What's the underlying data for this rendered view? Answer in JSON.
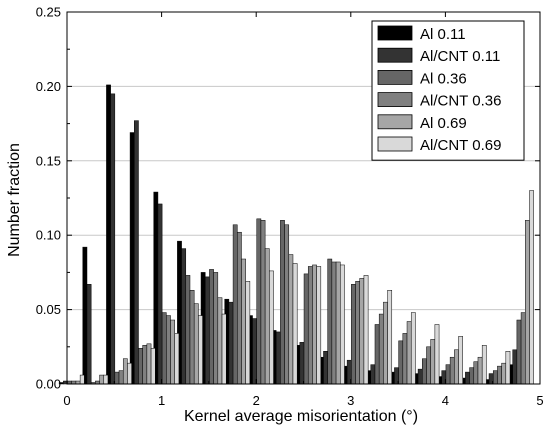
{
  "chart_data": {
    "type": "bar",
    "title": "",
    "xlabel": "Kernel average misorientation (°)",
    "ylabel": "Number fraction",
    "xlim": [
      0,
      5
    ],
    "ylim": [
      0,
      0.25
    ],
    "xticks": [
      "0",
      "1",
      "2",
      "3",
      "4",
      "5"
    ],
    "yticks": [
      "0.00",
      "0.05",
      "0.10",
      "0.15",
      "0.20",
      "0.25"
    ],
    "grid": true,
    "legend_position": "top-right",
    "bin_centers": [
      0.05,
      0.3,
      0.55,
      0.8,
      1.05,
      1.3,
      1.55,
      1.8,
      2.05,
      2.3,
      2.55,
      2.8,
      3.05,
      3.3,
      3.55,
      3.8,
      4.05,
      4.3,
      4.55,
      4.8
    ],
    "series": [
      {
        "name": "Al 0.11",
        "color": "#000000",
        "values": [
          0.001,
          0.092,
          0.201,
          0.169,
          0.129,
          0.096,
          0.075,
          0.057,
          0.046,
          0.036,
          0.026,
          0.018,
          0.012,
          0.009,
          0.008,
          0.007,
          0.005,
          0.004,
          0.003,
          0.013
        ]
      },
      {
        "name": "Al/CNT 0.11",
        "color": "#333333",
        "values": [
          0.002,
          0.067,
          0.195,
          0.177,
          0.121,
          0.091,
          0.072,
          0.055,
          0.044,
          0.035,
          0.028,
          0.022,
          0.016,
          0.013,
          0.011,
          0.01,
          0.009,
          0.008,
          0.007,
          0.023
        ]
      },
      {
        "name": "Al 0.36",
        "color": "#666666",
        "values": [
          0.002,
          0.001,
          0.008,
          0.024,
          0.048,
          0.073,
          0.077,
          0.107,
          0.111,
          0.11,
          0.074,
          0.084,
          0.067,
          0.04,
          0.029,
          0.017,
          0.013,
          0.011,
          0.009,
          0.043
        ]
      },
      {
        "name": "Al/CNT 0.36",
        "color": "#808080",
        "values": [
          0.002,
          0.002,
          0.009,
          0.026,
          0.046,
          0.063,
          0.075,
          0.102,
          0.11,
          0.107,
          0.079,
          0.082,
          0.069,
          0.047,
          0.034,
          0.025,
          0.018,
          0.015,
          0.012,
          0.048
        ]
      },
      {
        "name": "Al 0.69",
        "color": "#a6a6a6",
        "values": [
          0.002,
          0.006,
          0.017,
          0.027,
          0.043,
          0.054,
          0.058,
          0.084,
          0.091,
          0.087,
          0.08,
          0.082,
          0.071,
          0.055,
          0.042,
          0.03,
          0.023,
          0.018,
          0.014,
          0.11
        ]
      },
      {
        "name": "Al/CNT 0.69",
        "color": "#d9d9d9",
        "values": [
          0.006,
          0.006,
          0.014,
          0.024,
          0.034,
          0.046,
          0.047,
          0.069,
          0.076,
          0.081,
          0.079,
          0.08,
          0.073,
          0.063,
          0.048,
          0.04,
          0.032,
          0.026,
          0.022,
          0.13
        ]
      }
    ]
  }
}
